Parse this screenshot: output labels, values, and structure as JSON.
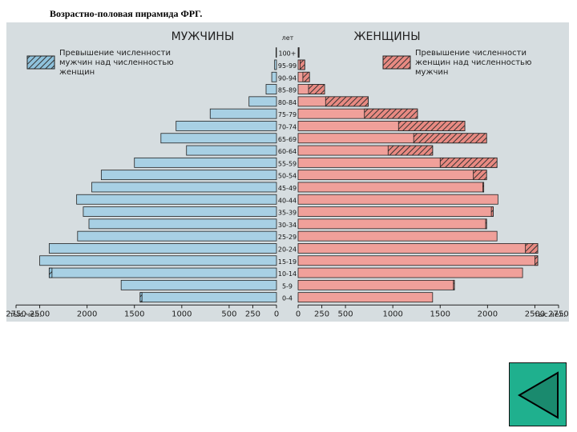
{
  "page": {
    "title": "Возрастно-половая пирамида ФРГ."
  },
  "nav": {
    "icon": "triangle-left-icon",
    "color": "#1fb08e"
  },
  "colors": {
    "male": "#a8d0e4",
    "female": "#f0a09a",
    "excess_hatch": "#333333",
    "edge": "#222222"
  },
  "chart_data": {
    "type": "population-pyramid",
    "title": "",
    "left_label": "МУЖЧИНЫ",
    "right_label": "ЖЕНЩИНЫ",
    "age_header": "лет",
    "unit_left": "тыс.чел.",
    "unit_right": "тыс.чел.",
    "legend_male": [
      "Превышение численности",
      "мужчин над численностью",
      "женщин"
    ],
    "legend_female": [
      "Превышение численности",
      "женщин над численностью",
      "мужчин"
    ],
    "xlim": [
      0,
      2750
    ],
    "ticks_left": [
      "2750",
      "2500",
      "2000",
      "1500",
      "1000",
      "500",
      "250",
      "0"
    ],
    "ticks_right": [
      "0",
      "250",
      "500",
      "1000",
      "1500",
      "2000",
      "2500",
      "2750"
    ],
    "tick_values": [
      2750,
      2500,
      2000,
      1500,
      1000,
      500,
      250,
      0
    ],
    "ages": [
      "100+",
      "95-99",
      "90-94",
      "85-89",
      "80-84",
      "75-79",
      "70-74",
      "65-69",
      "60-64",
      "55-59",
      "50-54",
      "45-49",
      "40-44",
      "35-39",
      "30-34",
      "25-29",
      "20-24",
      "15-19",
      "10-14",
      "5-9",
      "0-4"
    ],
    "male": [
      5,
      20,
      50,
      110,
      290,
      700,
      1060,
      1220,
      950,
      1500,
      1850,
      1950,
      2110,
      2040,
      1980,
      2100,
      2400,
      2500,
      2400,
      1640,
      1440
    ],
    "female": [
      10,
      70,
      120,
      280,
      740,
      1260,
      1760,
      1990,
      1420,
      2100,
      1990,
      1960,
      2110,
      2060,
      1990,
      2100,
      2530,
      2530,
      2370,
      1650,
      1420
    ]
  }
}
